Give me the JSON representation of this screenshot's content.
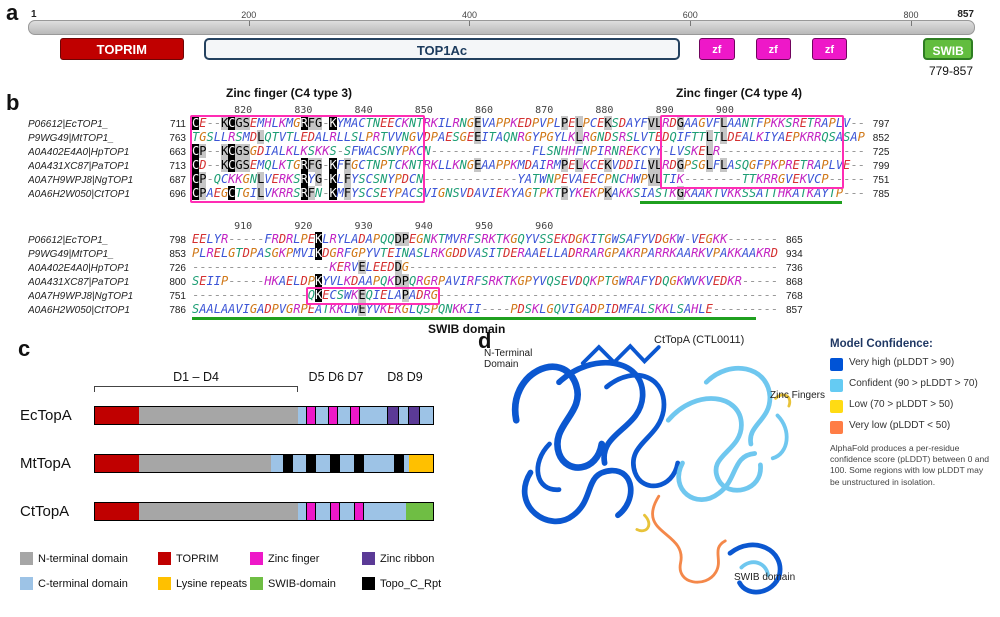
{
  "panel_letters": {
    "a": "a",
    "b": "b",
    "c": "c",
    "d": "d"
  },
  "panel_a": {
    "scale": {
      "left": "1",
      "right": "857",
      "min": 1,
      "max": 857,
      "ticks": [
        200,
        400,
        600,
        800
      ]
    },
    "domains": [
      {
        "label": "TOPRIM",
        "type": "toprim",
        "start": 30,
        "end": 142
      },
      {
        "label": "TOP1Ac",
        "type": "top1ac",
        "start": 160,
        "end": 592
      },
      {
        "label": "zf",
        "type": "zf",
        "start": 609,
        "end": 641
      },
      {
        "label": "zf",
        "type": "zf",
        "start": 660,
        "end": 692
      },
      {
        "label": "zf",
        "type": "zf",
        "start": 711,
        "end": 743
      },
      {
        "label": "SWIB",
        "type": "swib",
        "start": 812,
        "end": 857
      }
    ],
    "swib_range": "779-857"
  },
  "panel_b": {
    "title_left": "Zinc finger (C4 type 3)",
    "title_right": "Zinc finger (C4 type 4)",
    "swib_label": "SWIB domain",
    "names": [
      "P06612|EcTOP1_",
      "P9WG49|MtTOP1_",
      "A0A402E4A0|HpTOP1",
      "A0A431XC87|PaTOP1",
      "A0A7H9WPJ8|NgTOP1",
      "A0A6H2W050|CtTOP1"
    ],
    "block1": {
      "ruler_start": 811,
      "ruler_labels": [
        820,
        830,
        840,
        850,
        860,
        870,
        880,
        890,
        900
      ],
      "starts": [
        711,
        763,
        663,
        713,
        687,
        696
      ],
      "ends": [
        797,
        852,
        725,
        799,
        751,
        785
      ],
      "seqs": [
        "CE--KCGSEMHLKMGRFG-KYMACTNEECKNTRKILRNGEVAPPKEDPVPLPELPCEKSDAYFVLRDGAAGVFLAANTFPKKSRETRAPLV",
        "TGSLLRSMDLQTVTLEDALRLLSLPRTVVNGVDPAESGEEITAQNRGYPGYLKLRGNDSRSLVTEDQIFTTLTLDEALKIYAEPKRRQSASAP",
        "CP--KCGSGDIALKLKSKKS-SFWACSNYPKCN--------------FLSNHHFNPIRNREKCYY-LVSKELR",
        "CD--KCGSEMQLKTGRFG-KFFGCTNPTCKNTRKLLKNGEAAPPKMDAIRMPELKCEKVDDILVLRDGPSGLFLASQGFPKPRETRAPLVE",
        "CP-QCKKGNLVERKSRYG-KLFYSCSNYPDCN-------------YATWNPEVAEECPNCHWPVLTIK--------TTKRRGVEKVCP",
        "CPAEGCTGILVKRRSRFN-KMFYSCSEYPACSVIGNSVDAVIEKYAGTPKTPYKEKPKAKKSIASTKGKAAKTVKKSSATTHKATKAYTP"
      ],
      "pink_boxes": [
        {
          "r0": 0,
          "r1": 5,
          "c0": 0,
          "c1": 32
        },
        {
          "r0": 0,
          "r1": 4,
          "c0": 65,
          "c1": 90
        }
      ],
      "green_underline": {
        "c0": 62,
        "c1": 90
      }
    },
    "block2": {
      "ruler_start": 901,
      "ruler_labels": [
        910,
        920,
        930,
        940,
        950,
        960
      ],
      "starts": [
        798,
        853,
        726,
        800,
        751,
        786
      ],
      "ends": [
        865,
        934,
        736,
        868,
        768,
        857
      ],
      "seqs": [
        "EELYR-----FRDRLPEKLRYLADAPQQDPEGNKTMVRFSRKTKGQYVSSEKDGKITGWSAFYVDGKW-VEGKK",
        "PLRELGTDPASGKPMVIKDGRFGPYVTEINASLRKGDDVASITDERAAELLADRRARGPAKRPARRKAARKVPAKKAAKRD",
        "-------------------KERVELEEDDG",
        "SEIIP-----HKAELDPKYVLKDAAPQKDPQRGRPAVIRFSRKTKGPYVQSEVDQKPTGWRAFYDQGKWVKVEDKR",
        "----------------QKECSWKEQIELAPADRG",
        "SAALAAVIGADPVGRPEATKKLWEYVKEKGLQSPQNKKII----PDSKLGQVIGADPIDMFALSKKLSAHLE"
      ],
      "pink_boxes": [
        {
          "r0": 4,
          "r1": 4,
          "c0": 16,
          "c1": 34
        }
      ],
      "green_underline": {
        "c0": 0,
        "c1": 78
      }
    }
  },
  "panel_c": {
    "group_labels": {
      "d1d4": "D1 – D4",
      "d5d7": "D5 D6 D7",
      "d8d9": "D8 D9"
    },
    "bars": [
      {
        "name": "EcTopA",
        "base": [
          {
            "key": "toprim",
            "f0": 0,
            "f1": 0.13
          },
          {
            "key": "nterm",
            "f0": 0.13,
            "f1": 0.6
          },
          {
            "key": "cterm",
            "f0": 0.6,
            "f1": 1.0
          }
        ],
        "stripes": [
          {
            "key": "zf",
            "f0": 0.625,
            "f1": 0.655
          },
          {
            "key": "zf",
            "f0": 0.69,
            "f1": 0.72
          },
          {
            "key": "zf",
            "f0": 0.755,
            "f1": 0.785
          },
          {
            "key": "zribbon",
            "f0": 0.865,
            "f1": 0.9
          },
          {
            "key": "zribbon",
            "f0": 0.925,
            "f1": 0.962
          }
        ]
      },
      {
        "name": "MtTopA",
        "base": [
          {
            "key": "toprim",
            "f0": 0,
            "f1": 0.13
          },
          {
            "key": "nterm",
            "f0": 0.13,
            "f1": 0.52
          },
          {
            "key": "cterm",
            "f0": 0.52,
            "f1": 0.93
          },
          {
            "key": "lys",
            "f0": 0.93,
            "f1": 1.0
          }
        ],
        "stripes": [
          {
            "key": "topo",
            "f0": 0.555,
            "f1": 0.585
          },
          {
            "key": "topo",
            "f0": 0.625,
            "f1": 0.655
          },
          {
            "key": "topo",
            "f0": 0.695,
            "f1": 0.725
          },
          {
            "key": "topo",
            "f0": 0.765,
            "f1": 0.795
          },
          {
            "key": "topo",
            "f0": 0.885,
            "f1": 0.915
          }
        ]
      },
      {
        "name": "CtTopA",
        "base": [
          {
            "key": "toprim",
            "f0": 0,
            "f1": 0.13
          },
          {
            "key": "nterm",
            "f0": 0.13,
            "f1": 0.6
          },
          {
            "key": "cterm",
            "f0": 0.6,
            "f1": 0.92
          },
          {
            "key": "swib",
            "f0": 0.92,
            "f1": 1.0
          }
        ],
        "stripes": [
          {
            "key": "zf",
            "f0": 0.625,
            "f1": 0.655
          },
          {
            "key": "zf",
            "f0": 0.695,
            "f1": 0.725
          },
          {
            "key": "zf",
            "f0": 0.765,
            "f1": 0.795
          }
        ]
      }
    ],
    "legend": [
      {
        "key": "nterm",
        "label": "N-terminal domain",
        "color": "#a6a6a6"
      },
      {
        "key": "toprim",
        "label": "TOPRIM",
        "color": "#c00000"
      },
      {
        "key": "zf",
        "label": "Zinc finger",
        "color": "#ee18c8"
      },
      {
        "key": "zribbon",
        "label": "Zinc ribbon",
        "color": "#5b3a96"
      },
      {
        "key": "cterm",
        "label": "C-terminal domain",
        "color": "#9dc3e6"
      },
      {
        "key": "lys",
        "label": "Lysine repeats",
        "color": "#ffc000"
      },
      {
        "key": "swib",
        "label": "SWIB-domain",
        "color": "#6fbe44"
      },
      {
        "key": "topo",
        "label": "Topo_C_Rpt",
        "color": "#000000"
      }
    ]
  },
  "panel_d": {
    "structure_title": "CtTopA (CTL0011)",
    "labels": {
      "nterm": "N-Terminal Domain",
      "zf": "Zinc Fingers",
      "swib": "SWIB domain"
    },
    "legend_title": "Model Confidence:",
    "legend": [
      {
        "label": "Very high (pLDDT > 90)",
        "color": "#0053d6"
      },
      {
        "label": "Confident (90 > pLDDT > 70)",
        "color": "#65cbf3"
      },
      {
        "label": "Low (70 > pLDDT > 50)",
        "color": "#ffdb13"
      },
      {
        "label": "Very low (pLDDT < 50)",
        "color": "#ff7d45"
      }
    ],
    "note": "AlphaFold produces a per-residue confidence score (pLDDT) between 0 and 100. Some regions with low pLDDT may be unstructured in isolation."
  }
}
